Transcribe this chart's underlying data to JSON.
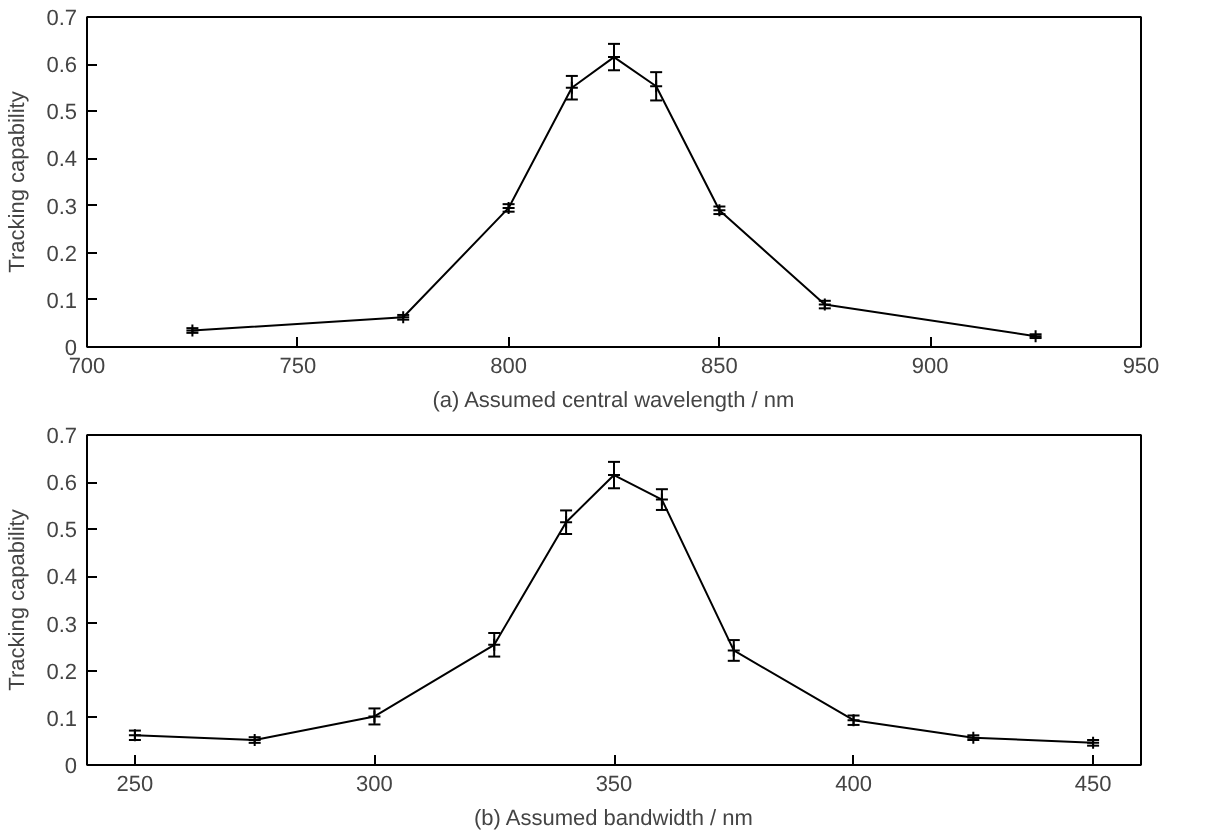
{
  "chart_data": [
    {
      "type": "line",
      "xlabel": "(a) Assumed central wavelength / nm",
      "ylabel": "Tracking capability",
      "x": [
        725,
        775,
        800,
        815,
        825,
        835,
        850,
        875,
        925
      ],
      "series": [
        {
          "color": "#000000",
          "values": [
            0.035,
            0.063,
            0.295,
            0.55,
            0.615,
            0.553,
            0.29,
            0.09,
            0.023
          ],
          "errors": [
            0.005,
            0.005,
            0.008,
            0.025,
            0.028,
            0.03,
            0.008,
            0.008,
            0.004
          ]
        }
      ],
      "xlim": [
        700,
        950
      ],
      "xticks": [
        700,
        750,
        800,
        850,
        900,
        950
      ],
      "ylim": [
        0,
        0.7
      ],
      "yticks": [
        0,
        0.1,
        0.2,
        0.3,
        0.4,
        0.5,
        0.6,
        0.7
      ],
      "marker": "cross",
      "line_style": "solid"
    },
    {
      "type": "line",
      "xlabel": "(b) Assumed bandwidth / nm",
      "ylabel": "Tracking capability",
      "x": [
        250,
        275,
        300,
        325,
        340,
        350,
        360,
        375,
        400,
        425,
        450
      ],
      "series": [
        {
          "color": "#000000",
          "values": [
            0.063,
            0.053,
            0.103,
            0.255,
            0.515,
            0.615,
            0.563,
            0.243,
            0.095,
            0.058,
            0.047
          ],
          "errors": [
            0.01,
            0.006,
            0.017,
            0.025,
            0.025,
            0.028,
            0.022,
            0.022,
            0.01,
            0.005,
            0.006
          ]
        }
      ],
      "xlim": [
        240,
        460
      ],
      "xticks": [
        250,
        300,
        350,
        400,
        450
      ],
      "ylim": [
        0,
        0.7
      ],
      "yticks": [
        0,
        0.1,
        0.2,
        0.3,
        0.4,
        0.5,
        0.6,
        0.7
      ],
      "marker": "cross",
      "line_style": "solid"
    }
  ]
}
